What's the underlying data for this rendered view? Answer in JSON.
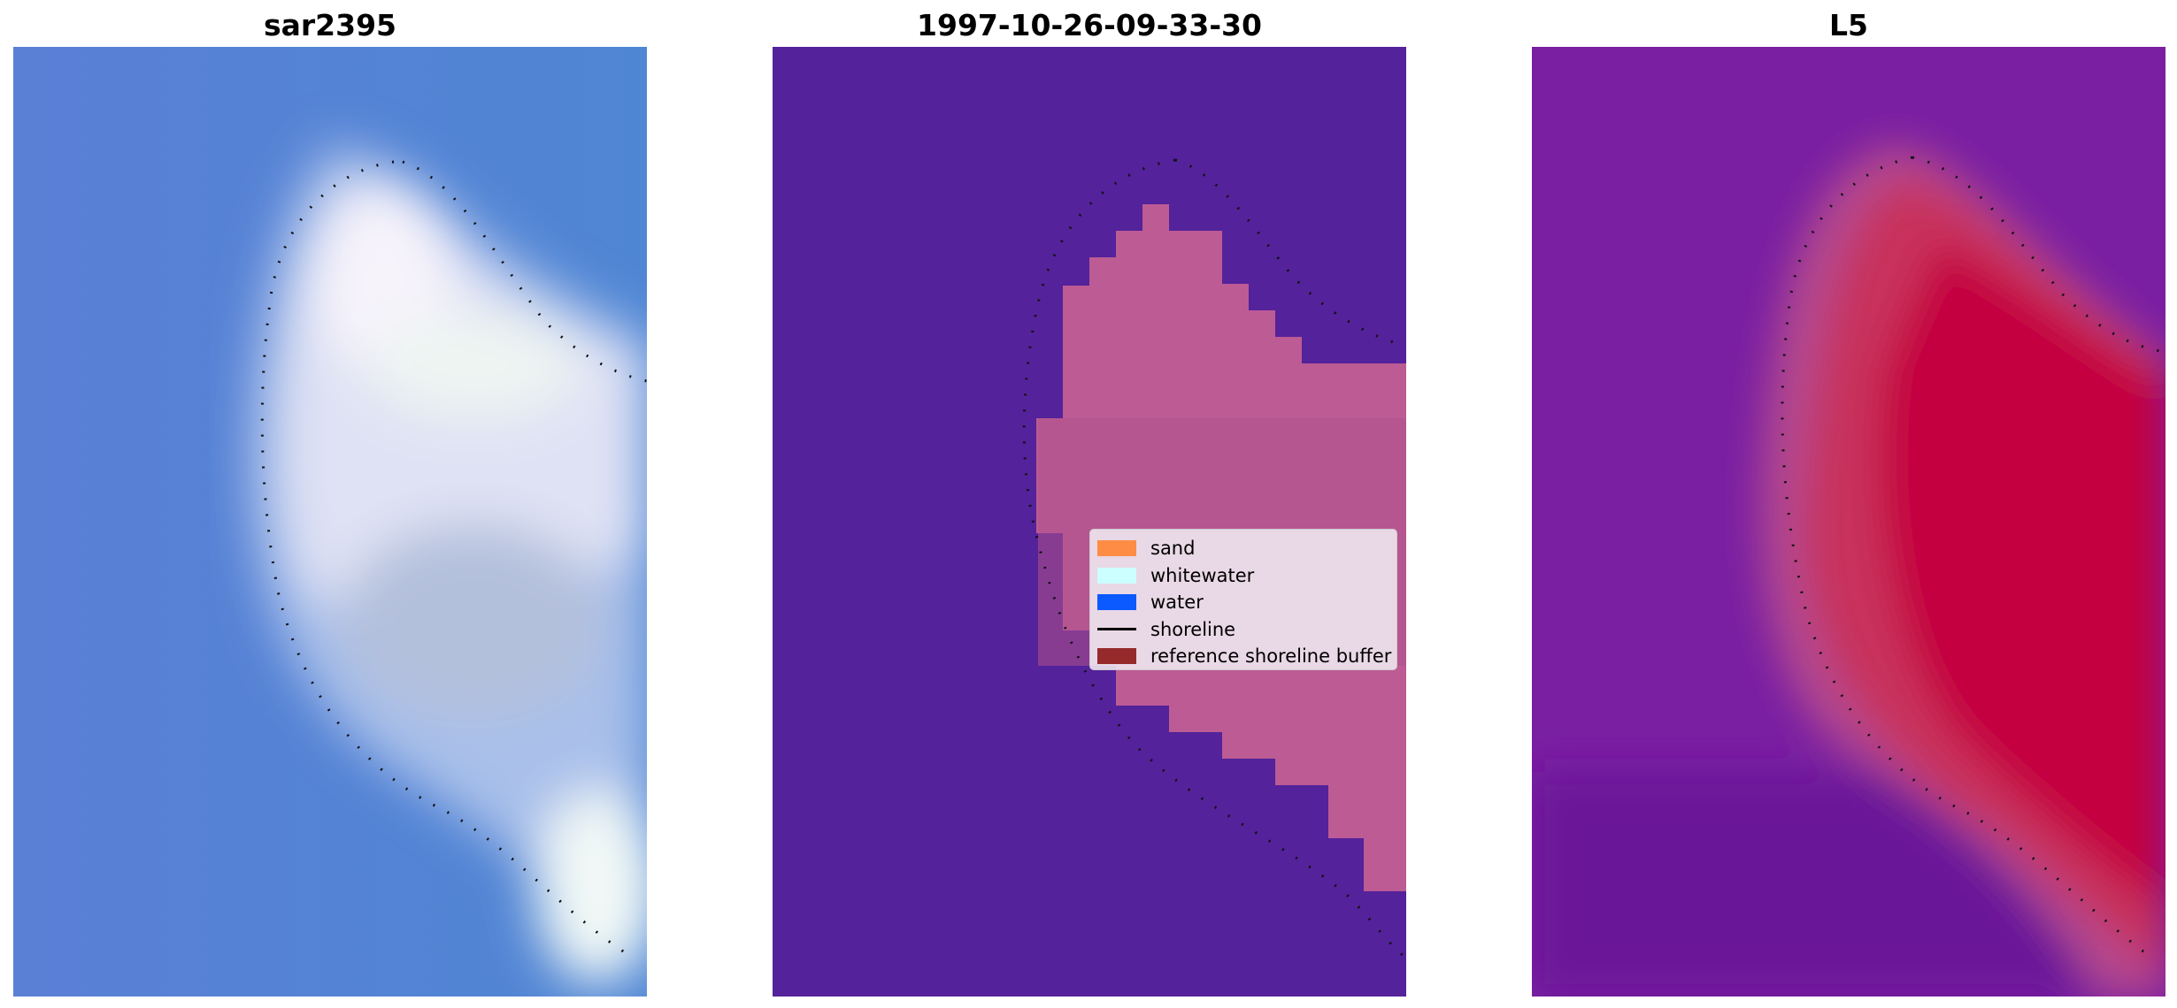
{
  "panels": [
    {
      "title": "sar2395",
      "kind": "rgb-image"
    },
    {
      "title": "1997-10-26-09-33-30",
      "kind": "classified-image"
    },
    {
      "title": "L5",
      "kind": "index-image"
    }
  ],
  "legend": {
    "entries": [
      {
        "label": "sand",
        "color": "#ff8c45",
        "type": "patch"
      },
      {
        "label": "whitewater",
        "color": "#ccffff",
        "type": "patch"
      },
      {
        "label": "water",
        "color": "#0a5aff",
        "type": "patch"
      },
      {
        "label": "shoreline",
        "color": "#000000",
        "type": "line"
      },
      {
        "label": "reference shoreline buffer",
        "color": "#962a2a",
        "type": "patch"
      }
    ]
  },
  "colors": {
    "rgb_water": "#5a86d8",
    "rgb_whitewater": "#e8eaf6",
    "classified_background": "#54229a",
    "classified_region": "#bd5b95",
    "index_low": "#7a1fa2",
    "index_high": "#c40040"
  }
}
